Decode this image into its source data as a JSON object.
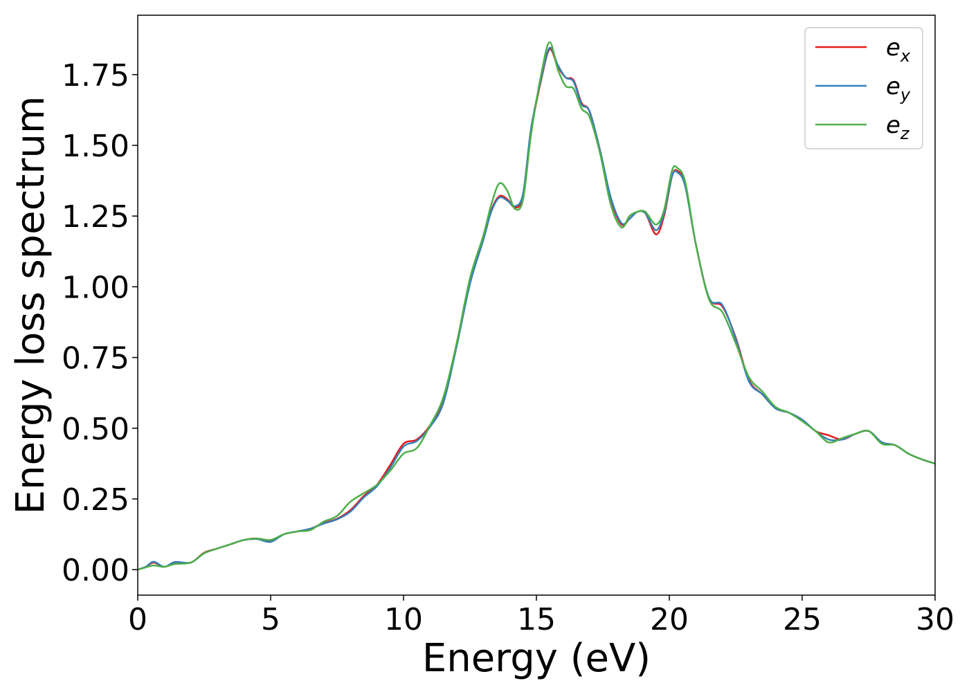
{
  "chart_data": {
    "type": "line",
    "title": "",
    "xlabel": "Energy (eV)",
    "ylabel": "Energy loss spectrum",
    "xlim": [
      0,
      30
    ],
    "ylim": [
      -0.09,
      1.96
    ],
    "xticks": [
      0,
      5,
      10,
      15,
      20,
      25,
      30
    ],
    "xtick_labels": [
      "0",
      "5",
      "10",
      "15",
      "20",
      "25",
      "30"
    ],
    "yticks": [
      0,
      0.25,
      0.5,
      0.75,
      1.0,
      1.25,
      1.5,
      1.75
    ],
    "ytick_labels": [
      "0.00",
      "0.25",
      "0.50",
      "0.75",
      "1.00",
      "1.25",
      "1.50",
      "1.75"
    ],
    "grid": false,
    "legend": {
      "placement": "top-right"
    },
    "series": [
      {
        "name": "e_x",
        "label_base": "e",
        "label_sub": "x",
        "color": "#e41a1c",
        "points": [
          [
            0,
            0
          ],
          [
            0.3,
            0.01
          ],
          [
            0.6,
            0.025
          ],
          [
            1.0,
            0.01
          ],
          [
            1.4,
            0.025
          ],
          [
            2.0,
            0.025
          ],
          [
            2.5,
            0.06
          ],
          [
            3.0,
            0.075
          ],
          [
            3.5,
            0.09
          ],
          [
            4.0,
            0.105
          ],
          [
            4.5,
            0.11
          ],
          [
            5.0,
            0.1
          ],
          [
            5.5,
            0.125
          ],
          [
            6.0,
            0.135
          ],
          [
            6.5,
            0.145
          ],
          [
            7.0,
            0.165
          ],
          [
            7.5,
            0.18
          ],
          [
            8.0,
            0.21
          ],
          [
            8.5,
            0.26
          ],
          [
            9.0,
            0.3
          ],
          [
            9.5,
            0.37
          ],
          [
            10.0,
            0.445
          ],
          [
            10.5,
            0.46
          ],
          [
            11.0,
            0.51
          ],
          [
            11.5,
            0.6
          ],
          [
            12.0,
            0.8
          ],
          [
            12.5,
            1.02
          ],
          [
            13.0,
            1.17
          ],
          [
            13.3,
            1.27
          ],
          [
            13.6,
            1.32
          ],
          [
            13.9,
            1.31
          ],
          [
            14.2,
            1.28
          ],
          [
            14.5,
            1.32
          ],
          [
            14.8,
            1.55
          ],
          [
            15.2,
            1.74
          ],
          [
            15.5,
            1.84
          ],
          [
            15.8,
            1.78
          ],
          [
            16.1,
            1.74
          ],
          [
            16.4,
            1.73
          ],
          [
            16.7,
            1.65
          ],
          [
            17.0,
            1.62
          ],
          [
            17.4,
            1.48
          ],
          [
            17.8,
            1.31
          ],
          [
            18.2,
            1.22
          ],
          [
            18.5,
            1.24
          ],
          [
            18.8,
            1.265
          ],
          [
            19.1,
            1.26
          ],
          [
            19.5,
            1.185
          ],
          [
            19.8,
            1.25
          ],
          [
            20.1,
            1.39
          ],
          [
            20.3,
            1.41
          ],
          [
            20.6,
            1.36
          ],
          [
            21.0,
            1.15
          ],
          [
            21.5,
            0.96
          ],
          [
            22.0,
            0.93
          ],
          [
            22.5,
            0.82
          ],
          [
            23.0,
            0.67
          ],
          [
            23.5,
            0.62
          ],
          [
            24.0,
            0.57
          ],
          [
            24.5,
            0.555
          ],
          [
            25.0,
            0.53
          ],
          [
            25.5,
            0.49
          ],
          [
            26.0,
            0.475
          ],
          [
            26.5,
            0.46
          ],
          [
            27.0,
            0.48
          ],
          [
            27.5,
            0.49
          ],
          [
            28.0,
            0.45
          ],
          [
            28.5,
            0.44
          ],
          [
            29.0,
            0.41
          ],
          [
            29.5,
            0.39
          ],
          [
            30.0,
            0.375
          ]
        ]
      },
      {
        "name": "e_y",
        "label_base": "e",
        "label_sub": "y",
        "color": "#377eb8",
        "points": [
          [
            0,
            0
          ],
          [
            0.3,
            0.01
          ],
          [
            0.6,
            0.028
          ],
          [
            1.0,
            0.01
          ],
          [
            1.4,
            0.027
          ],
          [
            2.0,
            0.025
          ],
          [
            2.5,
            0.058
          ],
          [
            3.0,
            0.075
          ],
          [
            3.5,
            0.09
          ],
          [
            4.0,
            0.105
          ],
          [
            4.5,
            0.108
          ],
          [
            5.0,
            0.098
          ],
          [
            5.5,
            0.125
          ],
          [
            6.0,
            0.135
          ],
          [
            6.5,
            0.145
          ],
          [
            7.0,
            0.163
          ],
          [
            7.5,
            0.178
          ],
          [
            8.0,
            0.205
          ],
          [
            8.5,
            0.255
          ],
          [
            9.0,
            0.295
          ],
          [
            9.5,
            0.36
          ],
          [
            10.0,
            0.435
          ],
          [
            10.5,
            0.455
          ],
          [
            11.0,
            0.505
          ],
          [
            11.5,
            0.59
          ],
          [
            12.0,
            0.79
          ],
          [
            12.5,
            1.01
          ],
          [
            13.0,
            1.165
          ],
          [
            13.3,
            1.265
          ],
          [
            13.6,
            1.315
          ],
          [
            13.9,
            1.305
          ],
          [
            14.2,
            1.285
          ],
          [
            14.5,
            1.33
          ],
          [
            14.8,
            1.56
          ],
          [
            15.2,
            1.745
          ],
          [
            15.5,
            1.845
          ],
          [
            15.8,
            1.785
          ],
          [
            16.1,
            1.74
          ],
          [
            16.4,
            1.725
          ],
          [
            16.7,
            1.645
          ],
          [
            17.0,
            1.62
          ],
          [
            17.4,
            1.48
          ],
          [
            17.8,
            1.315
          ],
          [
            18.2,
            1.225
          ],
          [
            18.5,
            1.24
          ],
          [
            18.8,
            1.265
          ],
          [
            19.1,
            1.26
          ],
          [
            19.5,
            1.2
          ],
          [
            19.8,
            1.26
          ],
          [
            20.1,
            1.39
          ],
          [
            20.3,
            1.405
          ],
          [
            20.6,
            1.355
          ],
          [
            21.0,
            1.15
          ],
          [
            21.5,
            0.96
          ],
          [
            22.0,
            0.935
          ],
          [
            22.5,
            0.815
          ],
          [
            23.0,
            0.665
          ],
          [
            23.5,
            0.62
          ],
          [
            24.0,
            0.57
          ],
          [
            24.5,
            0.555
          ],
          [
            25.0,
            0.53
          ],
          [
            25.5,
            0.49
          ],
          [
            26.0,
            0.46
          ],
          [
            26.5,
            0.46
          ],
          [
            27.0,
            0.48
          ],
          [
            27.5,
            0.49
          ],
          [
            28.0,
            0.45
          ],
          [
            28.5,
            0.44
          ],
          [
            29.0,
            0.41
          ],
          [
            29.5,
            0.39
          ],
          [
            30.0,
            0.375
          ]
        ]
      },
      {
        "name": "e_z",
        "label_base": "e",
        "label_sub": "z",
        "color": "#4daf4a",
        "points": [
          [
            0,
            0
          ],
          [
            0.3,
            0.008
          ],
          [
            0.6,
            0.015
          ],
          [
            1.0,
            0.01
          ],
          [
            1.4,
            0.02
          ],
          [
            2.0,
            0.025
          ],
          [
            2.5,
            0.058
          ],
          [
            3.0,
            0.075
          ],
          [
            3.5,
            0.09
          ],
          [
            4.0,
            0.105
          ],
          [
            4.5,
            0.11
          ],
          [
            5.0,
            0.105
          ],
          [
            5.5,
            0.125
          ],
          [
            6.0,
            0.135
          ],
          [
            6.5,
            0.14
          ],
          [
            7.0,
            0.17
          ],
          [
            7.5,
            0.19
          ],
          [
            8.0,
            0.24
          ],
          [
            8.5,
            0.27
          ],
          [
            9.0,
            0.3
          ],
          [
            9.5,
            0.35
          ],
          [
            10.0,
            0.41
          ],
          [
            10.5,
            0.43
          ],
          [
            11.0,
            0.51
          ],
          [
            11.5,
            0.61
          ],
          [
            12.0,
            0.8
          ],
          [
            12.5,
            1.03
          ],
          [
            13.0,
            1.18
          ],
          [
            13.3,
            1.29
          ],
          [
            13.6,
            1.365
          ],
          [
            13.9,
            1.34
          ],
          [
            14.2,
            1.275
          ],
          [
            14.5,
            1.31
          ],
          [
            14.8,
            1.54
          ],
          [
            15.2,
            1.76
          ],
          [
            15.5,
            1.865
          ],
          [
            15.8,
            1.77
          ],
          [
            16.1,
            1.71
          ],
          [
            16.4,
            1.7
          ],
          [
            16.7,
            1.63
          ],
          [
            17.0,
            1.6
          ],
          [
            17.4,
            1.47
          ],
          [
            17.8,
            1.29
          ],
          [
            18.2,
            1.21
          ],
          [
            18.5,
            1.25
          ],
          [
            18.8,
            1.265
          ],
          [
            19.1,
            1.265
          ],
          [
            19.5,
            1.22
          ],
          [
            19.8,
            1.27
          ],
          [
            20.1,
            1.41
          ],
          [
            20.3,
            1.42
          ],
          [
            20.6,
            1.37
          ],
          [
            21.0,
            1.15
          ],
          [
            21.5,
            0.955
          ],
          [
            22.0,
            0.91
          ],
          [
            22.5,
            0.8
          ],
          [
            23.0,
            0.68
          ],
          [
            23.5,
            0.63
          ],
          [
            24.0,
            0.575
          ],
          [
            24.5,
            0.555
          ],
          [
            25.0,
            0.525
          ],
          [
            25.5,
            0.49
          ],
          [
            26.0,
            0.45
          ],
          [
            26.5,
            0.465
          ],
          [
            27.0,
            0.48
          ],
          [
            27.5,
            0.49
          ],
          [
            28.0,
            0.445
          ],
          [
            28.5,
            0.44
          ],
          [
            29.0,
            0.41
          ],
          [
            29.5,
            0.39
          ],
          [
            30.0,
            0.375
          ]
        ]
      }
    ]
  }
}
